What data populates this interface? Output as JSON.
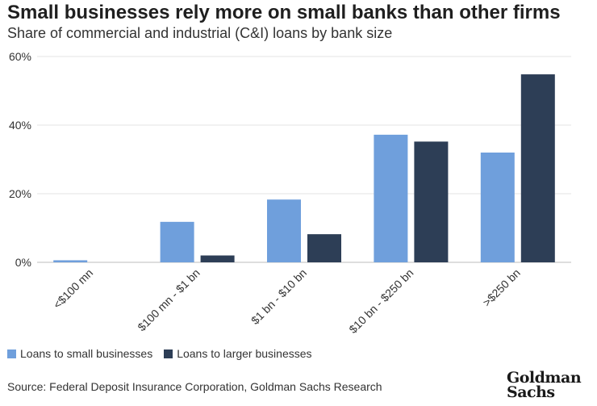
{
  "header": {
    "title": "Small businesses rely more on small banks than other firms",
    "subtitle": "Share of commercial and industrial (C&I) loans by bank size"
  },
  "chart_data": {
    "type": "bar",
    "title": "Small businesses rely more on small banks than other firms",
    "subtitle": "Share of commercial and industrial (C&I) loans by bank size",
    "xlabel": "",
    "ylabel": "",
    "ylim": [
      0,
      60
    ],
    "yticks": [
      0,
      20,
      40,
      60
    ],
    "ytick_labels": [
      "0%",
      "20%",
      "40%",
      "60%"
    ],
    "grid": true,
    "legend_position": "bottom-left",
    "categories": [
      "<$100 mn",
      "$100 mn - $1 bn",
      "$1 bn - $10 bn",
      "$10 bn - $250 bn",
      ">$250 bn"
    ],
    "series": [
      {
        "name": "Loans to small businesses",
        "color": "#6f9fdc",
        "values": [
          0.6,
          11.8,
          18.3,
          37.2,
          32.0
        ]
      },
      {
        "name": "Loans to larger businesses",
        "color": "#2d3e56",
        "values": [
          0.0,
          2.0,
          8.2,
          35.2,
          54.8
        ]
      }
    ]
  },
  "legend": {
    "items": [
      {
        "label": "Loans to small businesses",
        "color": "#6f9fdc"
      },
      {
        "label": "Loans to larger businesses",
        "color": "#2d3e56"
      }
    ]
  },
  "footer": {
    "source": "Source: Federal Deposit Insurance Corporation, Goldman Sachs Research",
    "logo_line1": "Goldman",
    "logo_line2": "Sachs"
  }
}
